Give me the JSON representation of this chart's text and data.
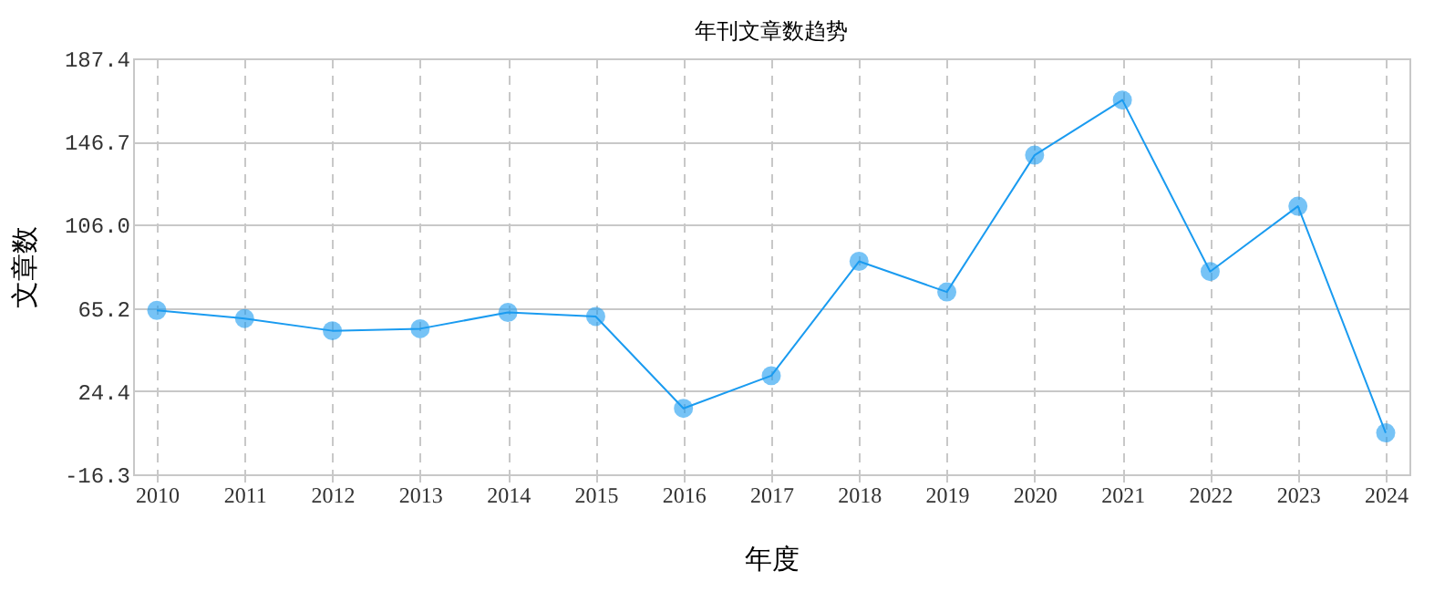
{
  "chart_data": {
    "type": "line",
    "title": "年刊文章数趋势",
    "xlabel": "年度",
    "ylabel": "文章数",
    "categories": [
      "2010",
      "2011",
      "2012",
      "2013",
      "2014",
      "2015",
      "2016",
      "2017",
      "2018",
      "2019",
      "2020",
      "2021",
      "2022",
      "2023",
      "2024"
    ],
    "series": [
      {
        "color": "#1a9bf0",
        "values": [
          64,
          60,
          54,
          55,
          63,
          61,
          16,
          32,
          88,
          73,
          140,
          167,
          83,
          115,
          4
        ]
      }
    ],
    "ylim": [
      -16.3,
      187.4
    ],
    "yticks": [
      -16.3,
      24.4,
      {
        "value": 65.2,
        "label": "65.2"
      },
      {
        "value": 106.0,
        "label": "106.0"
      },
      146.7,
      187.4
    ],
    "grid": true,
    "marker": "circle",
    "line_style": "solid"
  }
}
